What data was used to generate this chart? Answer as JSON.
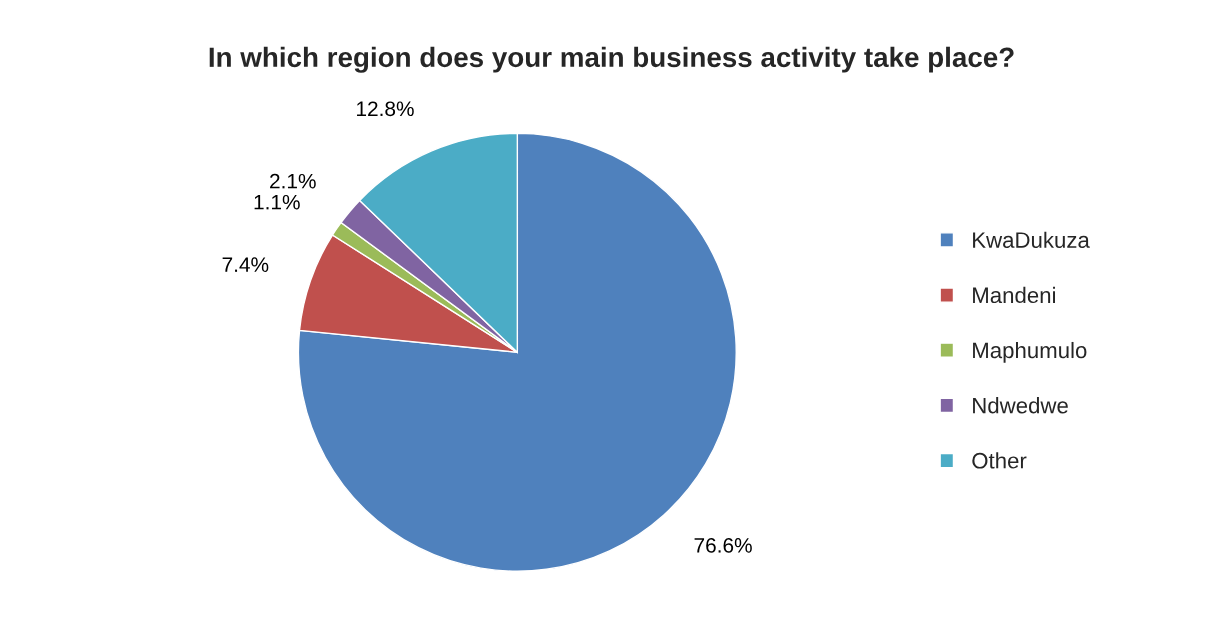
{
  "chart_data": {
    "type": "pie",
    "title": "In which region does your main business activity take place?",
    "categories": [
      "KwaDukuza",
      "Mandeni",
      "Maphumulo",
      "Ndwedwe",
      "Other"
    ],
    "values": [
      76.6,
      7.4,
      1.1,
      2.1,
      12.8
    ],
    "colors": [
      "#4f81bd",
      "#c0504d",
      "#9bbb59",
      "#8064a2",
      "#4bacc6"
    ],
    "value_labels": [
      "76.6%",
      "7.4%",
      "1.1%",
      "2.1%",
      "12.8%"
    ],
    "legend": "right"
  }
}
